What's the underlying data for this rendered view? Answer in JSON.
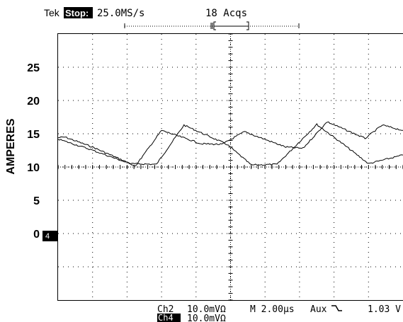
{
  "header": {
    "brand": "Tek",
    "state": "Stop:",
    "sample_rate": "25.0MS/s",
    "acquisitions": "18 Acqs"
  },
  "readout": {
    "ch2_label": "Ch2",
    "ch2_scale": "10.0mVΩ",
    "ch4_label": "Ch4",
    "ch4_scale": "10.0mVΩ",
    "timebase": "M 2.00µs",
    "trigger_source": "Aux",
    "trigger_slope_icon": "falling-edge-icon",
    "trigger_level": "1.03 V"
  },
  "ground_marker": "4",
  "chart_data": {
    "type": "line",
    "title": "",
    "xlabel": "",
    "ylabel": "AMPERES",
    "xlim": [
      0,
      20
    ],
    "ylim": [
      -10,
      30
    ],
    "grid": true,
    "yticks": [
      0,
      5,
      10,
      15,
      20,
      25
    ],
    "series": [
      {
        "x": [
          0,
          0.4,
          2.0,
          4.2,
          5.7,
          7.3,
          9.8,
          11.2,
          12.7,
          15.0,
          16.5,
          18.0,
          20.0
        ],
        "y": [
          14.4,
          14.5,
          13.0,
          10.5,
          10.4,
          16.3,
          13.4,
          10.3,
          10.4,
          16.4,
          13.5,
          10.5,
          11.8
        ]
      },
      {
        "x": [
          0,
          1.8,
          4.5,
          6.0,
          8.3,
          9.5,
          10.8,
          13.2,
          14.2,
          15.6,
          17.8,
          18.8,
          20.0
        ],
        "y": [
          14.2,
          12.7,
          10.2,
          15.5,
          13.5,
          13.4,
          15.3,
          13.0,
          12.8,
          16.8,
          14.3,
          16.3,
          15.5
        ]
      }
    ]
  }
}
